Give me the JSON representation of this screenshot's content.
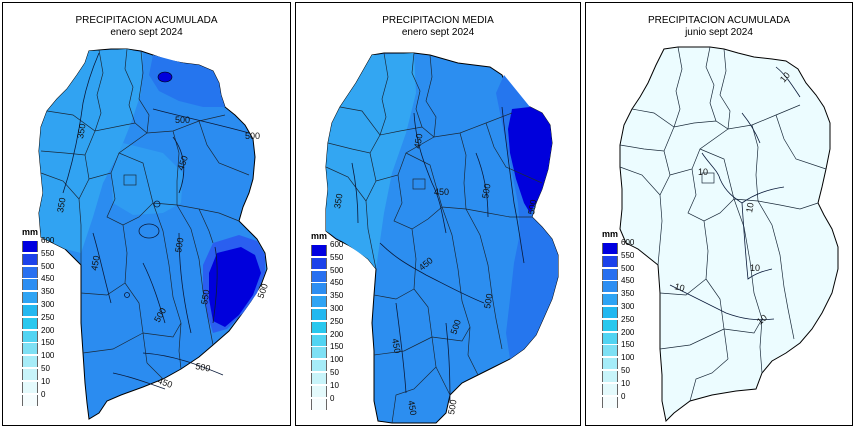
{
  "legend": {
    "unit": "mm",
    "labels": [
      "600",
      "550",
      "500",
      "450",
      "350",
      "300",
      "250",
      "200",
      "150",
      "100",
      "50",
      "10",
      "0"
    ],
    "colors": [
      "#0000e0",
      "#1c42ea",
      "#2870f0",
      "#2d8ef2",
      "#2fa4f4",
      "#23b8f0",
      "#29c8ee",
      "#52d4f2",
      "#7ee0f4",
      "#a6ecf8",
      "#c8f4fa",
      "#e4fafc",
      "#f6fdfe"
    ]
  },
  "panels": [
    {
      "title_line1": "PRECIPITACION ACUMULADA",
      "title_line2": "enero sept 2024",
      "base_color": "#2b8cf0",
      "contour_labels": [
        "500",
        "500",
        "450",
        "350",
        "350",
        "450",
        "500",
        "500",
        "450",
        "500",
        "550",
        "500"
      ]
    },
    {
      "title_line1": "PRECIPITACION MEDIA",
      "title_line2": "enero sept 2024",
      "base_color": "#2c8ef0",
      "contour_labels": [
        "450",
        "450",
        "500",
        "350",
        "500",
        "450",
        "450",
        "500",
        "450",
        "500",
        "500"
      ]
    },
    {
      "title_line1": "PRECIPITACION ACUMULADA",
      "title_line2": "junio sept 2024",
      "base_color": "#ecfcff",
      "contour_labels": [
        "10",
        "10",
        "10",
        "10",
        "10",
        "10"
      ]
    }
  ]
}
